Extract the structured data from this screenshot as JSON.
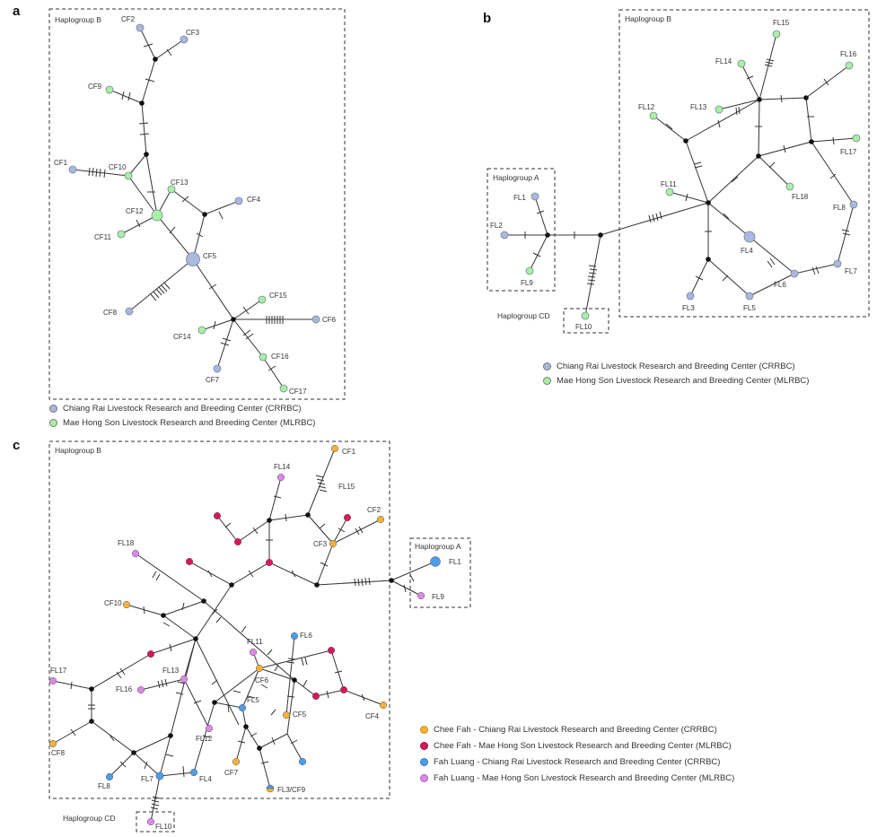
{
  "colors": {
    "crrbc_grey": "#a9b8dc",
    "mlrbc_green": "#a6f2a2",
    "cf_crrbc_orange": "#f5b13c",
    "cf_mlrbc_red": "#d8185c",
    "fl_crrbc_blue": "#4d9de8",
    "fl_mlrbc_violet": "#dd88e8",
    "median_black": "#111111"
  },
  "panel_a": {
    "letter": "a",
    "box_title": "Haplogroup B",
    "labels": {
      "CF1": "CF1",
      "CF2": "CF2",
      "CF3": "CF3",
      "CF4": "CF4",
      "CF5": "CF5",
      "CF6": "CF6",
      "CF7": "CF7",
      "CF8": "CF8",
      "CF9": "CF9",
      "CF10": "CF10",
      "CF11": "CF11",
      "CF12": "CF12",
      "CF13": "CF13",
      "CF14": "CF14",
      "CF15": "CF15",
      "CF16": "CF16",
      "CF17": "CF17"
    },
    "legend": [
      "Chiang Rai Livestock Research and Breeding Center (CRRBC)",
      "Mae Hong Son Livestock Research and Breeding Center (MLRBC)"
    ]
  },
  "panel_b": {
    "letter": "b",
    "box_b_title": "Haplogroup B",
    "box_a_title": "Haplogroup A",
    "box_cd_title": "Haplogroup CD",
    "labels": {
      "FL1": "FL1",
      "FL2": "FL2",
      "FL3": "FL3",
      "FL4": "FL4",
      "FL5": "FL5",
      "FL6": "FL6",
      "FL7": "FL7",
      "FL8": "FL8",
      "FL9": "FL9",
      "FL10": "FL10",
      "FL11": "FL11",
      "FL12": "FL12",
      "FL13": "FL13",
      "FL14": "FL14",
      "FL15": "FL15",
      "FL16": "FL16",
      "FL17": "FL17",
      "FL18": "FL18"
    },
    "legend": [
      "Chiang Rai Livestock Research and Breeding Center (CRRBC)",
      "Mae Hong Son Livestock Research and Breeding Center (MLRBC)"
    ]
  },
  "panel_c": {
    "letter": "c",
    "box_b_title": "Haplogroup B",
    "box_a_title": "Haplogroup A",
    "box_cd_title": "Haplogroup CD",
    "labels": {
      "CF1": "CF1",
      "FL14": "FL14",
      "FL15": "FL15",
      "CF2": "CF2",
      "CF3": "CF3",
      "FL1": "FL1",
      "FL9": "FL9",
      "FL18": "FL18",
      "CF10": "CF10",
      "FL6": "FL6",
      "FL11": "FL11",
      "CF6": "CF6",
      "FL17": "FL17",
      "FL13": "FL13",
      "FL16": "FL16",
      "FL5": "FL5",
      "CF5": "CF5",
      "CF4": "CF4",
      "FL12": "FL12",
      "CF8": "CF8",
      "CF7": "CF7",
      "FL7": "FL7",
      "FL4": "FL4",
      "FL8": "FL8",
      "FL3CF9": "FL3/CF9",
      "FL10": "FL10"
    },
    "legend": [
      "Chee Fah - Chiang Rai Livestock Research and Breeding Center (CRRBC)",
      "Chee Fah - Mae Hong Son Livestock Research and Breeding Center (MLRBC)",
      "Fah Luang - Chiang Rai Livestock Research and Breeding Center (CRRBC)",
      "Fah Luang - Mae Hong Son Livestock Research and Breeding Center (MLRBC)"
    ]
  }
}
